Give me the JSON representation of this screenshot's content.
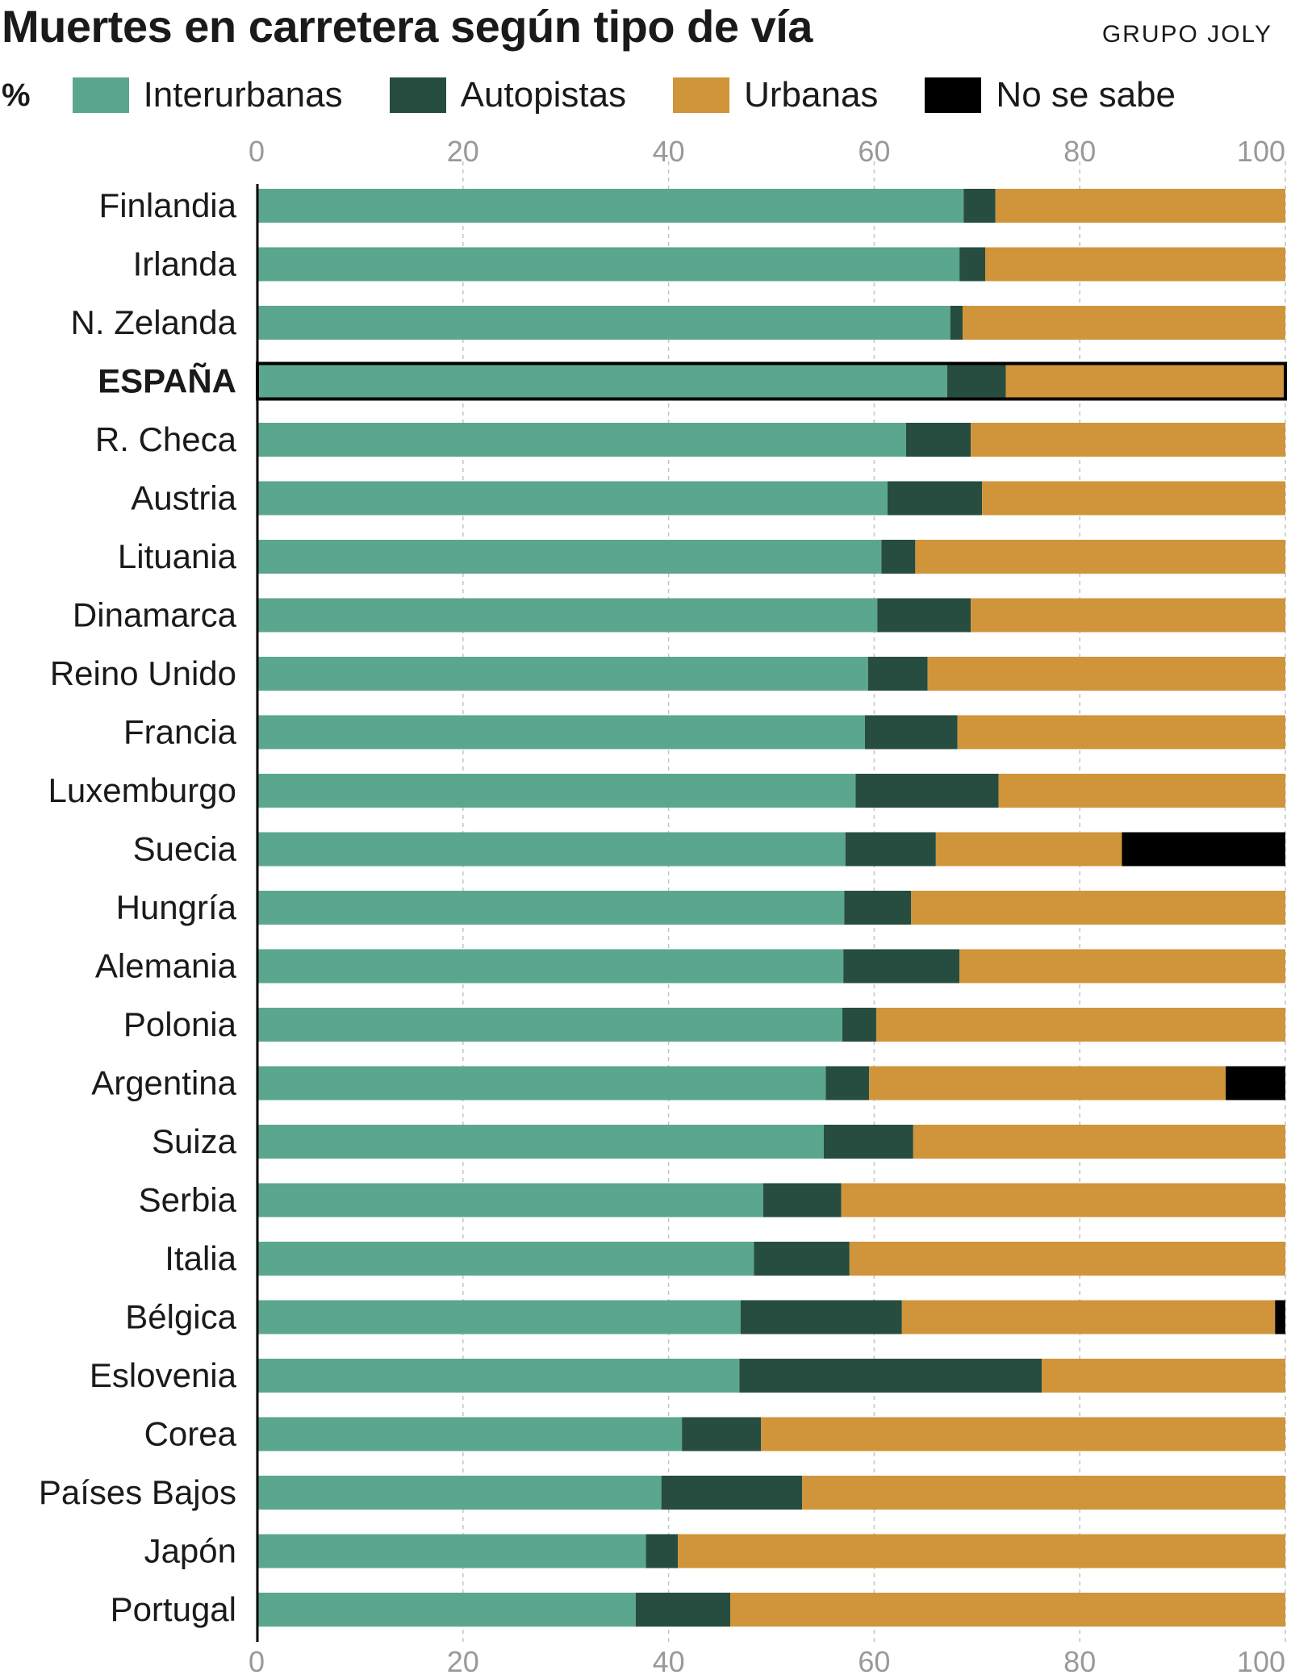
{
  "header": {
    "title": "Muertes en carretera según tipo de vía",
    "source": "GRUPO JOLY"
  },
  "legend": {
    "unit": "%",
    "items": [
      {
        "label": "Interurbanas",
        "color": "#5ba68f"
      },
      {
        "label": "Autopistas",
        "color": "#264d40"
      },
      {
        "label": "Urbanas",
        "color": "#d0943b"
      },
      {
        "label": "No se sabe",
        "color": "#000000"
      }
    ]
  },
  "chart_data": {
    "type": "bar",
    "orientation": "horizontal",
    "stacked": true,
    "title": "Muertes en carretera según tipo de vía",
    "xlabel": "%",
    "xlim": [
      0,
      100
    ],
    "ticks": [
      0,
      20,
      40,
      60,
      80,
      100
    ],
    "grid": true,
    "highlight": "ESPAÑA",
    "categories": [
      "Finlandia",
      "Irlanda",
      "N. Zelanda",
      "ESPAÑA",
      "R. Checa",
      "Austria",
      "Lituania",
      "Dinamarca",
      "Reino Unido",
      "Francia",
      "Luxemburgo",
      "Suecia",
      "Hungría",
      "Alemania",
      "Polonia",
      "Argentina",
      "Suiza",
      "Serbia",
      "Italia",
      "Bélgica",
      "Eslovenia",
      "Corea",
      "Países Bajos",
      "Japón",
      "Portugal"
    ],
    "series": [
      {
        "name": "Interurbanas",
        "color": "#5ba68f",
        "values": [
          68.7,
          68.3,
          67.4,
          67.1,
          63.1,
          61.3,
          60.7,
          60.3,
          59.4,
          59.1,
          58.2,
          57.2,
          57.1,
          57.0,
          56.9,
          55.3,
          55.1,
          49.2,
          48.3,
          47.0,
          46.9,
          41.3,
          39.3,
          37.8,
          36.8
        ]
      },
      {
        "name": "Autopistas",
        "color": "#264d40",
        "values": [
          3.1,
          2.5,
          1.2,
          5.7,
          6.3,
          9.2,
          3.3,
          9.1,
          5.8,
          9.0,
          13.9,
          8.8,
          6.5,
          11.3,
          3.3,
          4.2,
          8.7,
          7.6,
          9.3,
          15.7,
          29.4,
          7.7,
          13.7,
          3.1,
          9.2
        ]
      },
      {
        "name": "Urbanas",
        "color": "#d0943b",
        "values": [
          28.2,
          29.2,
          31.4,
          27.2,
          30.6,
          29.5,
          36.0,
          30.6,
          34.8,
          31.9,
          27.9,
          18.1,
          36.4,
          31.7,
          39.8,
          34.7,
          36.2,
          43.2,
          42.4,
          36.3,
          23.7,
          51.0,
          47.0,
          59.1,
          54.0
        ]
      },
      {
        "name": "No se sabe",
        "color": "#000000",
        "values": [
          0,
          0,
          0,
          0,
          0,
          0,
          0,
          0,
          0,
          0,
          0,
          15.9,
          0,
          0,
          0,
          5.8,
          0,
          0,
          0,
          1.0,
          0,
          0,
          0,
          0,
          0
        ]
      }
    ]
  }
}
